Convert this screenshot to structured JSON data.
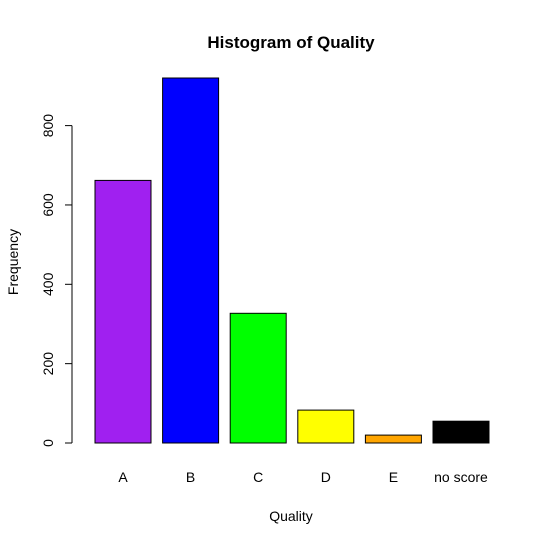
{
  "chart_data": {
    "type": "bar",
    "title": "Histogram of Quality",
    "xlabel": "Quality",
    "ylabel": "Frequency",
    "categories": [
      "A",
      "B",
      "C",
      "D",
      "E",
      "no score"
    ],
    "values": [
      662,
      920,
      327,
      83,
      20,
      55
    ],
    "colors": [
      "#a020f0",
      "#0000ff",
      "#00ff00",
      "#ffff00",
      "#ffa500",
      "#000000"
    ],
    "yticks": [
      0,
      200,
      400,
      600,
      800
    ],
    "ylim": [
      0,
      920
    ],
    "grid": false,
    "legend": "none"
  }
}
